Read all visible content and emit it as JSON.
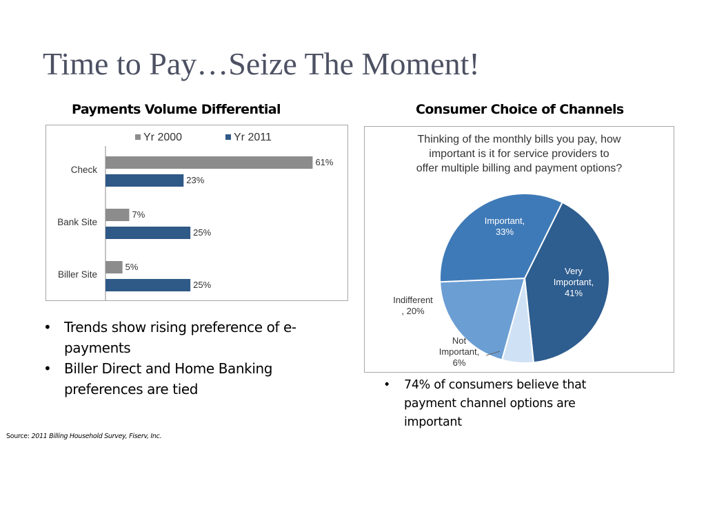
{
  "title": "Time to Pay…Seize The Moment!",
  "left_panel": {
    "heading": "Payments Volume Differential",
    "bullets": [
      "Trends show rising preference of e-payments",
      "Biller Direct and Home Banking preferences are tied"
    ]
  },
  "right_panel": {
    "heading": "Consumer Choice of Channels",
    "bullets": [
      "74% of consumers believe that payment channel options are important"
    ]
  },
  "source": {
    "prefix": "Source: ",
    "text": "2011 Billing Household Survey, Fiserv, Inc."
  },
  "chart_data": [
    {
      "type": "bar",
      "orientation": "horizontal",
      "categories": [
        "Check",
        "Bank Site",
        "Biller Site"
      ],
      "series": [
        {
          "name": "Yr 2000",
          "values": [
            61,
            7,
            5
          ],
          "labels": [
            "61%",
            "7%",
            "5%"
          ],
          "color": "#8c8c8c"
        },
        {
          "name": "Yr 2011",
          "values": [
            23,
            25,
            25
          ],
          "labels": [
            "23%",
            "25%",
            "25%"
          ],
          "color": "#2f5987"
        }
      ],
      "xlim": [
        0,
        67
      ],
      "legend_position": "top",
      "grid": false
    },
    {
      "type": "pie",
      "title": "Thinking of the monthly bills you pay, how important is it for service providers to offer multiple billing and payment options?",
      "slices": [
        {
          "label_lines": [
            "Very",
            "Important,",
            "41%"
          ],
          "value": 41,
          "color": "#2e5d8f",
          "text_color": "#ffffff"
        },
        {
          "label_lines": [
            "Not",
            "Important,",
            "6%"
          ],
          "value": 6,
          "color": "#cfe2f5",
          "text_color": "#333333"
        },
        {
          "label_lines": [
            "Indifferent",
            ", 20%"
          ],
          "value": 20,
          "color": "#6b9ed3",
          "text_color": "#333333"
        },
        {
          "label_lines": [
            "Important,",
            "33%"
          ],
          "value": 33,
          "color": "#3f7ab8",
          "text_color": "#ffffff"
        }
      ],
      "start_angle_deg": 0,
      "direction": "clockwise"
    }
  ]
}
